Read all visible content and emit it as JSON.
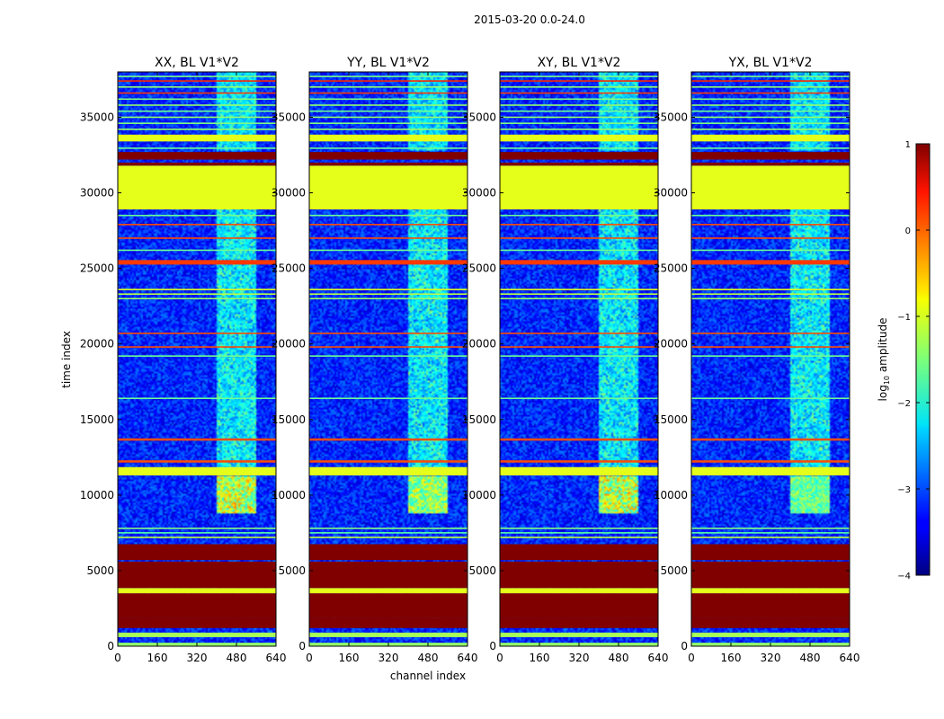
{
  "figure": {
    "suptitle": "2015-03-20 0.0-24.0"
  },
  "chart_data": {
    "type": "heatmap",
    "xlabel": "channel index",
    "ylabel": "time index",
    "xlim": [
      0,
      640
    ],
    "ylim": [
      0,
      38000
    ],
    "xticks": [
      0,
      160,
      320,
      480,
      640
    ],
    "yticks": [
      0,
      5000,
      10000,
      15000,
      20000,
      25000,
      30000,
      35000
    ],
    "panels": [
      {
        "title": "XX, BL V1*V2",
        "burst_level": 3
      },
      {
        "title": "YY, BL V1*V2",
        "burst_level": 2
      },
      {
        "title": "XY, BL V1*V2",
        "burst_level": 3
      },
      {
        "title": "YX, BL V1*V2",
        "burst_level": 1
      }
    ],
    "colorbar": {
      "label": "log10 amplitude",
      "label_prefix": "log",
      "label_sub": "10",
      "label_suffix": " amplitude",
      "range": [
        -4,
        1
      ],
      "ticks": [
        1,
        0,
        -1,
        -2,
        -3,
        -4
      ],
      "tick_labels": [
        "1",
        "0",
        "−1",
        "−2",
        "−3",
        "−4"
      ],
      "colormap": "jet"
    },
    "flagged_time_bands": [
      {
        "t0": 0,
        "t1": 230,
        "level": -1.4
      },
      {
        "t0": 600,
        "t1": 900,
        "level": -1.3
      },
      {
        "t0": 1200,
        "t1": 1850,
        "level": 1.0
      },
      {
        "t0": 1850,
        "t1": 3500,
        "level": 1.0
      },
      {
        "t0": 3500,
        "t1": 3850,
        "level": -1.0
      },
      {
        "t0": 3850,
        "t1": 5600,
        "level": 1.0
      },
      {
        "t0": 5700,
        "t1": 6750,
        "level": 1.0
      },
      {
        "t0": 11300,
        "t1": 11850,
        "level": -1.0
      },
      {
        "t0": 12150,
        "t1": 12300,
        "level": 0.0
      },
      {
        "t0": 13600,
        "t1": 13750,
        "level": 0.0
      },
      {
        "t0": 25250,
        "t1": 25550,
        "level": 0.1
      },
      {
        "t0": 28900,
        "t1": 31800,
        "level": -1.0
      },
      {
        "t0": 31800,
        "t1": 32000,
        "level": 1.0
      },
      {
        "t0": 32200,
        "t1": 32700,
        "level": 1.0
      },
      {
        "t0": 33400,
        "t1": 33850,
        "level": -1.0
      }
    ],
    "thin_lines": [
      {
        "t": 7200,
        "level": -1.2
      },
      {
        "t": 7500,
        "level": -1.7
      },
      {
        "t": 7800,
        "level": -1.5
      },
      {
        "t": 16400,
        "level": -1.6
      },
      {
        "t": 19200,
        "level": -1.6
      },
      {
        "t": 19800,
        "level": 0.0
      },
      {
        "t": 20700,
        "level": 0.0
      },
      {
        "t": 23000,
        "level": -1.4
      },
      {
        "t": 23300,
        "level": -1.2
      },
      {
        "t": 23600,
        "level": -1.0
      },
      {
        "t": 26200,
        "level": -1.6
      },
      {
        "t": 27000,
        "level": 0.0
      },
      {
        "t": 27900,
        "level": 0.0
      },
      {
        "t": 28500,
        "level": -1.6
      },
      {
        "t": 32950,
        "level": -1.6
      },
      {
        "t": 34200,
        "level": -1.4
      },
      {
        "t": 34600,
        "level": -1.5
      },
      {
        "t": 35000,
        "level": -1.4
      },
      {
        "t": 35400,
        "level": -1.6
      },
      {
        "t": 35800,
        "level": -1.4
      },
      {
        "t": 36200,
        "level": -1.5
      },
      {
        "t": 36600,
        "level": 0.1
      },
      {
        "t": 37000,
        "level": -1.4
      },
      {
        "t": 37400,
        "level": 0.2
      },
      {
        "t": 37700,
        "level": -1.5
      }
    ],
    "rfi_channel_range": [
      400,
      560
    ],
    "rfi_burst_time_range": [
      8800,
      11300
    ]
  }
}
